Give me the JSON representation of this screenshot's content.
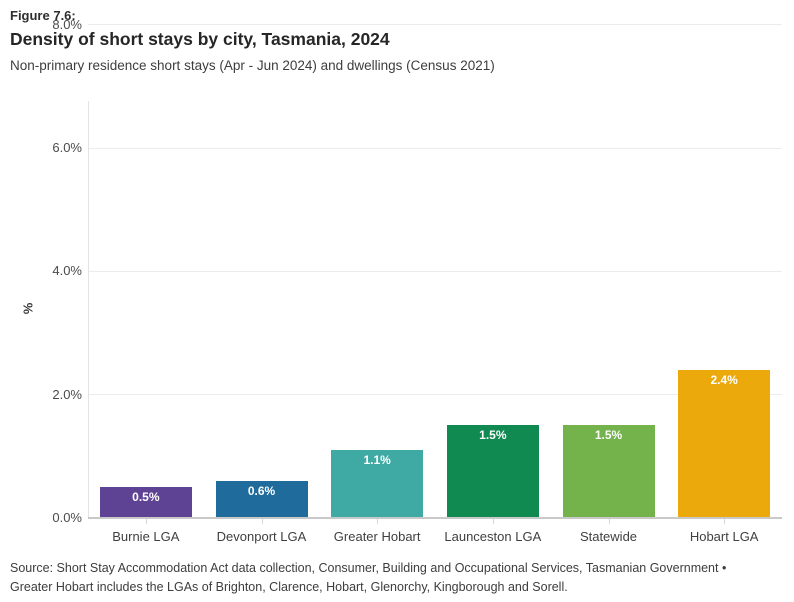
{
  "header": {
    "figure_label": "Figure 7.6:",
    "title": "Density of short stays by city, Tasmania, 2024",
    "subtitle": "Non-primary residence short stays (Apr - Jun 2024) and dwellings (Census 2021)"
  },
  "chart_data": {
    "type": "bar",
    "title": "Density of short stays by city, Tasmania, 2024",
    "subtitle": "Non-primary residence short stays (Apr - Jun 2024) and dwellings (Census 2021)",
    "categories": [
      "Burnie LGA",
      "Devonport LGA",
      "Greater Hobart",
      "Launceston LGA",
      "Statewide",
      "Hobart LGA"
    ],
    "values": [
      0.5,
      0.6,
      1.1,
      1.5,
      1.5,
      2.4
    ],
    "value_labels": [
      "0.5%",
      "0.6%",
      "1.1%",
      "1.5%",
      "1.5%",
      "2.4%"
    ],
    "bar_colors": [
      "#5E4394",
      "#1F6C9C",
      "#3FAAA3",
      "#108A50",
      "#74B24B",
      "#EBA90C"
    ],
    "value_label_color": "#ffffff",
    "xlabel": "",
    "ylabel": "%",
    "ylim": [
      0,
      8
    ],
    "yticks": [
      {
        "v": 0,
        "label": "0.0%"
      },
      {
        "v": 2,
        "label": "2.0%"
      },
      {
        "v": 4,
        "label": "4.0%"
      },
      {
        "v": 6,
        "label": "6.0%"
      },
      {
        "v": 8,
        "label": "8.0%"
      }
    ],
    "grid": true,
    "legend": false
  },
  "footer": {
    "source_lines": [
      "Source: Short Stay Accommodation Act data collection, Consumer, Building and Occupational Services, Tasmanian Government •",
      "Greater Hobart includes the LGAs of Brighton, Clarence, Hobart, Glenorchy, Kingborough and Sorell."
    ]
  }
}
